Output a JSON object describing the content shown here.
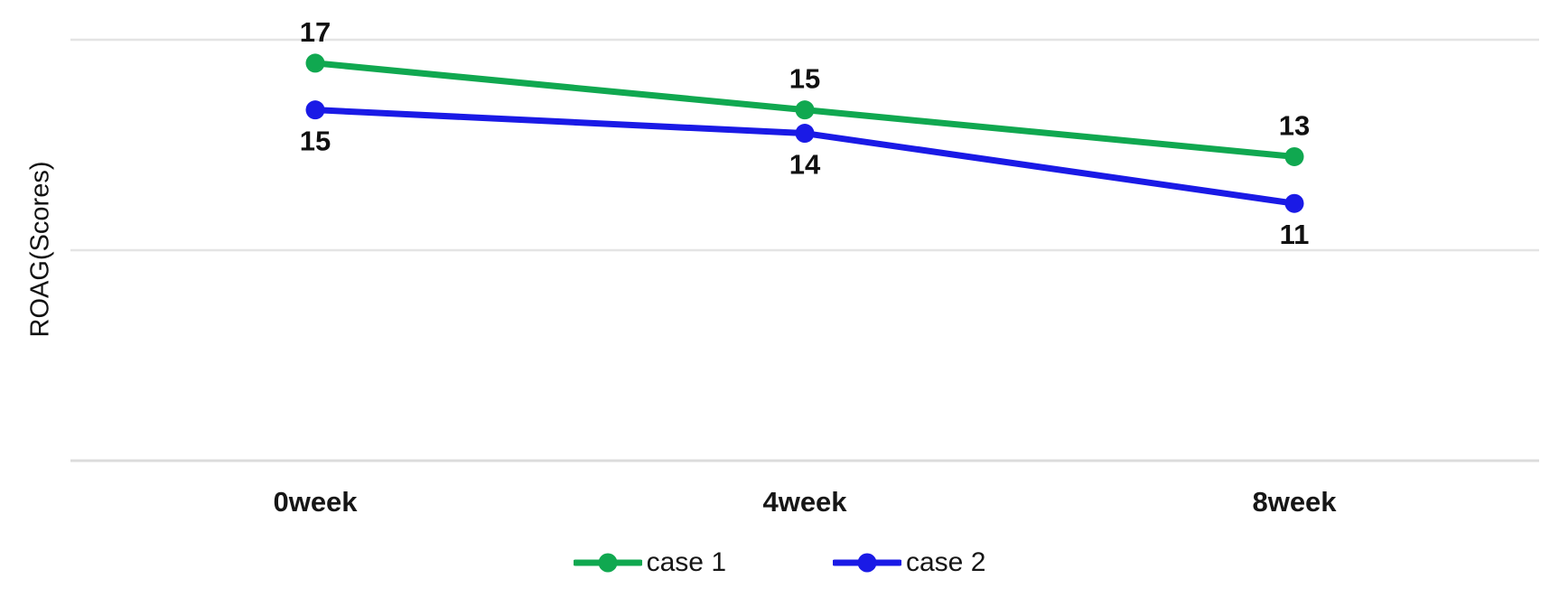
{
  "chart_data": {
    "type": "line",
    "categories": [
      "0week",
      "4week",
      "8week"
    ],
    "series": [
      {
        "name": "case 1",
        "color": "#10A850",
        "values": [
          17,
          15,
          13
        ],
        "data_label_position": "above"
      },
      {
        "name": "case 2",
        "color": "#1A1AE6",
        "values": [
          15,
          14,
          11
        ],
        "data_label_position": "below"
      }
    ],
    "ylabel": "ROAG(Scores)",
    "ylim": [
      0,
      18
    ],
    "gridline_values": [
      9,
      18
    ],
    "grid_on": true,
    "legend_position": "bottom",
    "data_labels_on": true,
    "colors": {
      "gridline": "#E4E4E4",
      "axis_line": "#DCDCDC",
      "label_text": "#111111",
      "background": "#FFFFFF"
    }
  }
}
